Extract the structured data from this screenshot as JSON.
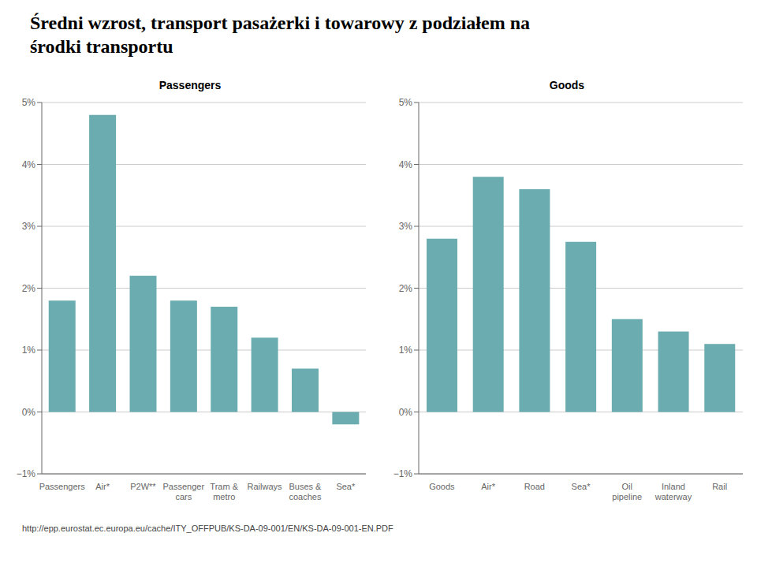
{
  "title": "Średni wzrost, transport pasażerki i towarowy z podziałem na\nśrodki transportu",
  "annotations": [
    "http://epp.eurostat.ec.europa.eu/cache/ITY_OFFPUB/KS-DA-09-001/EN/KS-DA-09-001-EN.PDF"
  ],
  "chart_data": [
    {
      "type": "bar",
      "title": "Passengers",
      "categories": [
        "Passengers",
        "Air*",
        "P2W**",
        "Passenger\ncars",
        "Tram &\nmetro",
        "Railways",
        "Buses &\ncoaches",
        "Sea*"
      ],
      "values": [
        1.8,
        4.8,
        2.2,
        1.8,
        1.7,
        1.2,
        0.7,
        -0.2
      ],
      "color": "#6aacb0",
      "ylim": [
        -1.0,
        5.0
      ],
      "yticks": [
        {
          "value": -1,
          "label": "−1%"
        },
        {
          "value": 0,
          "label": "0%"
        },
        {
          "value": 1,
          "label": "1%"
        },
        {
          "value": 2,
          "label": "2%"
        },
        {
          "value": 3,
          "label": "3%"
        },
        {
          "value": 4,
          "label": "4%"
        },
        {
          "value": 5,
          "label": "5%"
        }
      ],
      "grid": true
    },
    {
      "type": "bar",
      "title": "Goods",
      "categories": [
        "Goods",
        "Air*",
        "Road",
        "Sea*",
        "Oil\npipeline",
        "Inland\nwaterway",
        "Rail"
      ],
      "values": [
        2.8,
        3.8,
        3.6,
        2.75,
        1.5,
        1.3,
        1.1
      ],
      "color": "#6aacb0",
      "ylim": [
        -1.0,
        5.0
      ],
      "yticks": [
        {
          "value": -1,
          "label": "−1%"
        },
        {
          "value": 0,
          "label": "0%"
        },
        {
          "value": 1,
          "label": "1%"
        },
        {
          "value": 2,
          "label": "2%"
        },
        {
          "value": 3,
          "label": "3%"
        },
        {
          "value": 4,
          "label": "4%"
        },
        {
          "value": 5,
          "label": "5%"
        }
      ],
      "grid": true
    }
  ]
}
